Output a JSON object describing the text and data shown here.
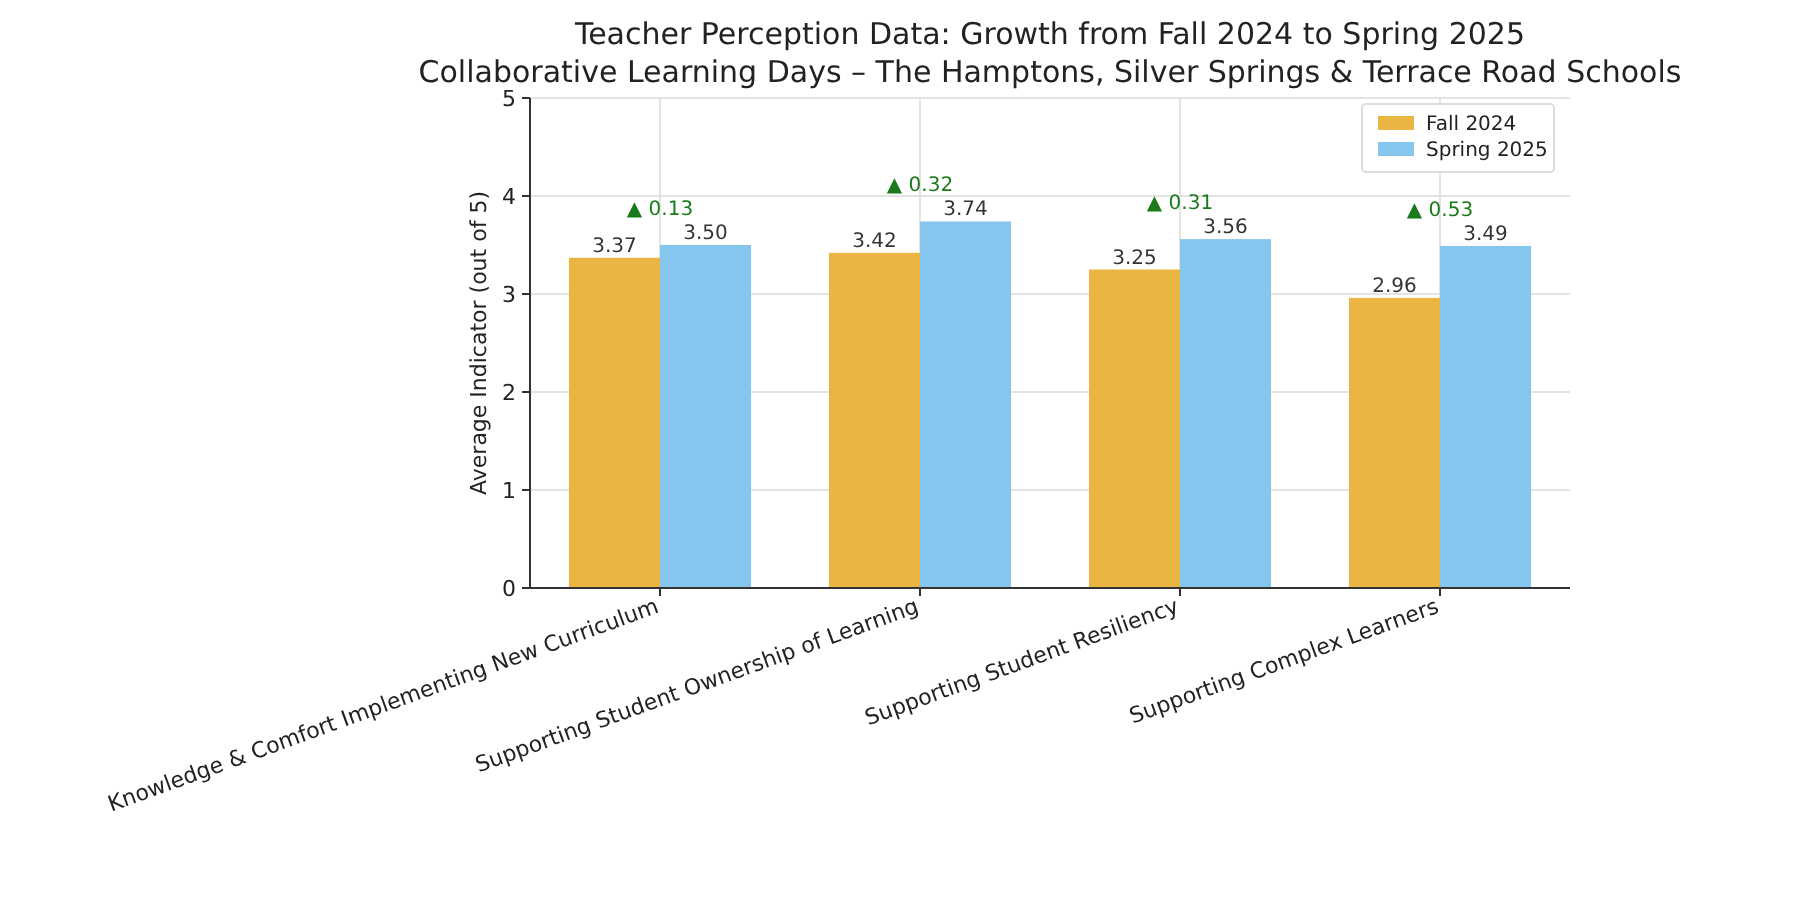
{
  "chart_data": {
    "type": "bar",
    "title": "Teacher Perception Data: Growth from Fall 2024 to Spring 2025",
    "subtitle": "Collaborative Learning Days – The Hamptons, Silver Springs & Terrace Road Schools",
    "ylabel": "Average Indicator (out of 5)",
    "categories": [
      "Knowledge & Comfort Implementing New Curriculum",
      "Supporting Student Ownership of Learning",
      "Supporting Student Resiliency",
      "Supporting Complex Learners"
    ],
    "series": [
      {
        "name": "Fall 2024",
        "color": "#ebb544",
        "values": [
          3.37,
          3.42,
          3.25,
          2.96
        ],
        "value_labels": [
          "3.37",
          "3.42",
          "3.25",
          "2.96"
        ]
      },
      {
        "name": "Spring 2025",
        "color": "#84c6ed",
        "values": [
          3.5,
          3.74,
          3.56,
          3.49
        ],
        "value_labels": [
          "3.50",
          "3.74",
          "3.56",
          "3.49"
        ]
      }
    ],
    "ylim": [
      0,
      5
    ],
    "yticks": [
      0,
      1,
      2,
      3,
      4,
      5
    ],
    "grid": true,
    "legend": "top right",
    "annotations": [
      "▲ 0.13",
      "▲ 0.32",
      "▲ 0.31",
      "▲ 0.53"
    ]
  }
}
